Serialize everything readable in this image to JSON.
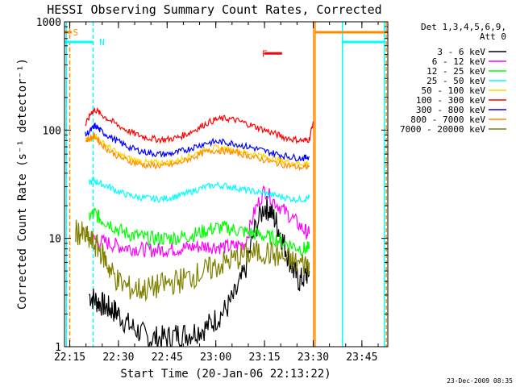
{
  "chart_data": {
    "type": "line",
    "title": "HESSI Observing Summary Count Rates, Corrected",
    "xlabel": "Start Time (20-Jan-06 22:13:22)",
    "ylabel": "Corrected Count Rate (s⁻¹ detector⁻¹)",
    "footer": "23-Dec-2009 08:35",
    "yscale": "log",
    "xlim": [
      22.223,
      23.883
    ],
    "ylim": [
      1,
      1000
    ],
    "xticks": [
      {
        "label": "22:15",
        "value": 22.25
      },
      {
        "label": "22:30",
        "value": 22.5
      },
      {
        "label": "22:45",
        "value": 22.75
      },
      {
        "label": "23:00",
        "value": 23.0
      },
      {
        "label": "23:15",
        "value": 23.25
      },
      {
        "label": "23:30",
        "value": 23.5
      },
      {
        "label": "23:45",
        "value": 23.75
      }
    ],
    "yticks": [
      {
        "label": "1",
        "value": 1
      },
      {
        "label": "10",
        "value": 10
      },
      {
        "label": "100",
        "value": 100
      },
      {
        "label": "1000",
        "value": 1000
      }
    ],
    "legend": {
      "title_lines": [
        "Det 1,3,4,5,6,9,",
        "Att 0"
      ],
      "position": "right"
    },
    "series": [
      {
        "name": "3 - 6 keV",
        "color": "#000000",
        "x": [
          22.35,
          22.38,
          22.41,
          22.44,
          22.47,
          22.5,
          22.55,
          22.6,
          22.65,
          22.7,
          22.75,
          22.8,
          22.85,
          22.9,
          22.95,
          23.0,
          23.05,
          23.1,
          23.15,
          23.2,
          23.25,
          23.28,
          23.31,
          23.34,
          23.37,
          23.4,
          23.43,
          23.46,
          23.48
        ],
        "y": [
          3,
          2.7,
          2.5,
          2.3,
          2.2,
          2,
          1.6,
          1.4,
          1.2,
          1.2,
          1.2,
          1.3,
          1.3,
          1.4,
          1.5,
          1.8,
          2.2,
          3,
          5,
          12,
          20,
          18,
          14,
          10,
          7,
          5,
          4,
          4.5,
          5
        ]
      },
      {
        "name": "6 - 12 keV",
        "color": "#ff00ff",
        "x": [
          22.35,
          22.4,
          22.45,
          22.5,
          22.55,
          22.6,
          22.65,
          22.7,
          22.75,
          22.8,
          22.85,
          22.9,
          22.95,
          23.0,
          23.05,
          23.1,
          23.15,
          23.2,
          23.25,
          23.3,
          23.35,
          23.4,
          23.45,
          23.48
        ],
        "y": [
          10,
          9.5,
          9,
          8.5,
          8.2,
          8,
          7.8,
          7.8,
          7.9,
          8,
          8.2,
          8.4,
          8.5,
          8.4,
          8.3,
          8.5,
          9,
          18,
          28,
          22,
          18,
          15,
          12,
          11
        ]
      },
      {
        "name": "12 - 25 keV",
        "color": "#00ff00",
        "x": [
          22.35,
          22.38,
          22.41,
          22.45,
          22.5,
          22.55,
          22.6,
          22.65,
          22.7,
          22.75,
          22.8,
          22.85,
          22.9,
          22.95,
          23.0,
          23.05,
          23.1,
          23.15,
          23.2,
          23.25,
          23.3,
          23.35,
          23.4,
          23.45,
          23.48
        ],
        "y": [
          16,
          17,
          15,
          14,
          12,
          11,
          10.5,
          10,
          10,
          10,
          10.2,
          10.5,
          11,
          11.8,
          12.5,
          12.5,
          12,
          11.5,
          11,
          10.5,
          10,
          9.2,
          8.5,
          8,
          8
        ]
      },
      {
        "name": "25 - 50 keV",
        "color": "#00ffff",
        "x": [
          22.35,
          22.38,
          22.41,
          22.45,
          22.5,
          22.55,
          22.6,
          22.65,
          22.7,
          22.75,
          22.8,
          22.85,
          22.9,
          22.95,
          23.0,
          23.05,
          23.1,
          23.15,
          23.2,
          23.25,
          23.3,
          23.35,
          23.4,
          23.45,
          23.48
        ],
        "y": [
          33,
          34,
          32,
          30,
          27,
          25,
          24,
          23.5,
          23,
          23.5,
          24.5,
          26,
          28,
          30,
          31,
          30.5,
          29.5,
          28,
          27,
          26,
          25,
          24,
          23,
          23,
          24
        ]
      },
      {
        "name": "50 - 100 keV",
        "color": "#ffd700",
        "x": [
          22.33,
          22.36,
          22.38,
          22.41,
          22.45,
          22.5,
          22.55,
          22.6,
          22.65,
          22.7,
          22.75,
          22.8,
          22.85,
          22.9,
          22.95,
          23.0,
          23.05,
          23.1,
          23.15,
          23.2,
          23.25,
          23.3,
          23.35,
          23.4,
          23.45,
          23.48
        ],
        "y": [
          82,
          80,
          90,
          78,
          70,
          60,
          55,
          52,
          50,
          50,
          50,
          52,
          56,
          61,
          66,
          68,
          67,
          65,
          62,
          60,
          57,
          54,
          52,
          50,
          49,
          50
        ]
      },
      {
        "name": "100 - 300 keV",
        "color": "#ff0000",
        "x": [
          22.33,
          22.36,
          22.38,
          22.41,
          22.45,
          22.5,
          22.55,
          22.6,
          22.65,
          22.7,
          22.75,
          22.8,
          22.85,
          22.9,
          22.95,
          23.0,
          23.05,
          23.1,
          23.15,
          23.2,
          23.25,
          23.3,
          23.35,
          23.4,
          23.45,
          23.48,
          23.5
        ],
        "y": [
          110,
          145,
          155,
          140,
          125,
          110,
          98,
          90,
          85,
          82,
          82,
          85,
          92,
          102,
          115,
          125,
          128,
          124,
          116,
          108,
          100,
          93,
          86,
          82,
          80,
          82,
          120
        ]
      },
      {
        "name": "300 - 800 keV",
        "color": "#0000ff",
        "x": [
          22.33,
          22.36,
          22.38,
          22.41,
          22.45,
          22.5,
          22.55,
          22.6,
          22.65,
          22.7,
          22.75,
          22.8,
          22.85,
          22.9,
          22.95,
          23.0,
          23.05,
          23.1,
          23.15,
          23.2,
          23.25,
          23.3,
          23.35,
          23.4,
          23.45,
          23.48
        ],
        "y": [
          90,
          100,
          110,
          98,
          88,
          78,
          70,
          65,
          62,
          60,
          60,
          62,
          66,
          71,
          76,
          78,
          77,
          75,
          71,
          68,
          64,
          61,
          58,
          56,
          55,
          57
        ]
      },
      {
        "name": "800 - 7000 keV",
        "color": "#ff8c00",
        "x": [
          22.33,
          22.36,
          22.38,
          22.41,
          22.45,
          22.5,
          22.55,
          22.6,
          22.65,
          22.7,
          22.75,
          22.8,
          22.85,
          22.9,
          22.95,
          23.0,
          23.05,
          23.1,
          23.15,
          23.2,
          23.25,
          23.3,
          23.35,
          23.4,
          23.45,
          23.48
        ],
        "y": [
          80,
          85,
          88,
          75,
          65,
          57,
          52,
          49,
          47,
          47,
          47,
          49,
          53,
          58,
          63,
          65,
          64,
          62,
          59,
          56,
          53,
          50,
          48,
          46,
          45,
          46
        ]
      },
      {
        "name": "7000 - 20000 keV",
        "color": "#808000",
        "x": [
          22.28,
          22.31,
          22.34,
          22.37,
          22.4,
          22.43,
          22.46,
          22.5,
          22.55,
          22.6,
          22.65,
          22.7,
          22.75,
          22.8,
          22.85,
          22.9,
          22.95,
          23.0,
          23.05,
          23.1,
          23.15,
          23.2,
          23.25,
          23.3,
          23.35,
          23.4,
          23.45,
          23.48
        ],
        "y": [
          11.5,
          11,
          10,
          9,
          8,
          6.5,
          5,
          4,
          3.5,
          3.4,
          3.4,
          3.6,
          3.8,
          4,
          4.3,
          4.6,
          5,
          5.5,
          6,
          6.5,
          7,
          7.3,
          7.5,
          7,
          6.5,
          6,
          5.8,
          6
        ]
      }
    ],
    "annotations": [
      {
        "label": "S",
        "color": "#ff8c00",
        "bar_x": [
          22.223,
          22.26
        ],
        "bar_y": 800
      },
      {
        "label": "N",
        "color": "#00ffff",
        "bar_x": [
          22.223,
          22.37
        ],
        "bar_y": 650
      },
      {
        "label": "F",
        "color": "#ff0000",
        "bar_x": [
          23.25,
          23.34
        ],
        "bar_y": 510
      },
      {
        "label": "",
        "color": "#ff8c00",
        "bar_x": [
          23.51,
          23.88
        ],
        "bar_y": 800
      },
      {
        "label": "",
        "color": "#00ffff",
        "bar_x": [
          23.65,
          23.87
        ],
        "bar_y": 650
      }
    ],
    "vertical_lines": [
      {
        "x": 22.25,
        "color": "#ff8c00",
        "style": "dashed"
      },
      {
        "x": 22.37,
        "color": "#00ffff",
        "style": "dashed"
      },
      {
        "x": 22.232,
        "color": "#00ffff",
        "style": "solid"
      },
      {
        "x": 23.502,
        "color": "#ff8c00",
        "style": "solid"
      },
      {
        "x": 23.51,
        "color": "#ff8c00",
        "style": "solid"
      },
      {
        "x": 23.65,
        "color": "#00ffff",
        "style": "solid"
      },
      {
        "x": 23.865,
        "color": "#00ffff",
        "style": "solid"
      },
      {
        "x": 23.875,
        "color": "#ff8c00",
        "style": "dashed"
      }
    ]
  }
}
